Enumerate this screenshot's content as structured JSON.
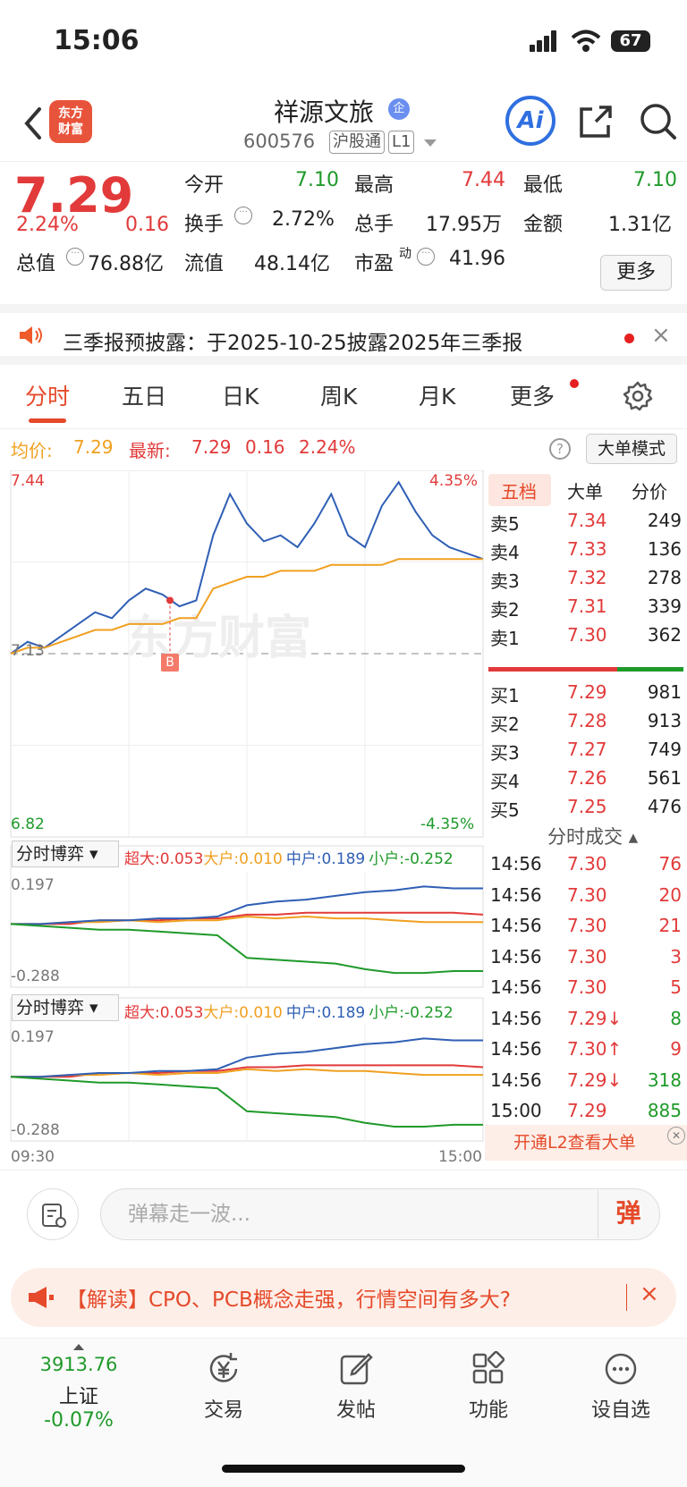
{
  "status": {
    "time": "15:06",
    "battery": "67"
  },
  "header": {
    "name": "祥源文旅",
    "badge": "企",
    "code": "600576",
    "tag1": "沪股通",
    "tag2": "L1",
    "ai": "Ai",
    "logo_line1": "东方",
    "logo_line2": "财富"
  },
  "quote": {
    "price": "7.29",
    "pct": "2.24%",
    "chg": "0.16",
    "open_label": "今开",
    "open": "7.10",
    "high_label": "最高",
    "high": "7.44",
    "low_label": "最低",
    "low": "7.10",
    "turnover_label": "换手",
    "turnover": "2.72%",
    "volume_label": "总手",
    "volume": "17.95万",
    "amount_label": "金额",
    "amount": "1.31亿",
    "mcap_label": "总值",
    "mcap": "76.88亿",
    "float_label": "流值",
    "float": "48.14亿",
    "pe_label": "市盈",
    "pe_sup": "动",
    "pe": "41.96",
    "more": "更多"
  },
  "notice": {
    "text": "三季报预披露：于2025-10-25披露2025年三季报",
    "close": "×"
  },
  "tabs": [
    "分时",
    "五日",
    "日K",
    "周K",
    "月K",
    "更多"
  ],
  "inforow": {
    "avg_label": "均价:",
    "avg": "7.29",
    "last_label": "最新:",
    "last": "7.29",
    "chg": "0.16",
    "pct": "2.24%",
    "help": "?",
    "mode": "大单模式"
  },
  "chart": {
    "y_high": "7.44",
    "y_low": "6.82",
    "pct_high": "4.35%",
    "pct_low": "-4.35%",
    "prev_close_label": "7.13",
    "watermark": "东方财富",
    "marker": "B",
    "x_start": "09:30",
    "x_end": "15:00"
  },
  "chart_data": {
    "type": "line",
    "x_range": [
      "09:30",
      "15:00"
    ],
    "ylim": [
      6.82,
      7.44
    ],
    "prev_close": 7.13,
    "series": [
      {
        "name": "最新",
        "color": "#2f5fb5",
        "values": [
          7.13,
          7.15,
          7.14,
          7.16,
          7.18,
          7.2,
          7.19,
          7.22,
          7.24,
          7.23,
          7.21,
          7.22,
          7.33,
          7.4,
          7.35,
          7.32,
          7.33,
          7.31,
          7.35,
          7.4,
          7.33,
          7.31,
          7.38,
          7.42,
          7.37,
          7.33,
          7.31,
          7.3,
          7.29
        ]
      },
      {
        "name": "均价",
        "color": "#f0a020",
        "values": [
          7.13,
          7.14,
          7.14,
          7.15,
          7.16,
          7.17,
          7.17,
          7.18,
          7.18,
          7.18,
          7.19,
          7.19,
          7.24,
          7.25,
          7.26,
          7.26,
          7.27,
          7.27,
          7.27,
          7.28,
          7.28,
          7.28,
          7.28,
          7.29,
          7.29,
          7.29,
          7.29,
          7.29,
          7.29
        ]
      }
    ]
  },
  "indicators": [
    {
      "select": "分时博弈",
      "items": [
        {
          "label": "超大:0.053",
          "color": "#e23a3a"
        },
        {
          "label": "大户:0.010",
          "color": "#f0a020"
        },
        {
          "label": "中户:0.189",
          "color": "#2f5fb5"
        },
        {
          "label": "小户:-0.252",
          "color": "#1f9a2a"
        }
      ],
      "top": "0.197",
      "bottom": "-0.288"
    },
    {
      "select": "分时博弈",
      "items": [
        {
          "label": "超大:0.053",
          "color": "#e23a3a"
        },
        {
          "label": "大户:0.010",
          "color": "#f0a020"
        },
        {
          "label": "中户:0.189",
          "color": "#2f5fb5"
        },
        {
          "label": "小户:-0.252",
          "color": "#1f9a2a"
        }
      ],
      "top": "0.197",
      "bottom": "-0.288"
    }
  ],
  "orderbook": {
    "tabs": [
      "五档",
      "大单",
      "分价"
    ],
    "asks": [
      {
        "label": "卖5",
        "price": "7.34",
        "vol": "249"
      },
      {
        "label": "卖4",
        "price": "7.33",
        "vol": "136"
      },
      {
        "label": "卖3",
        "price": "7.32",
        "vol": "278"
      },
      {
        "label": "卖2",
        "price": "7.31",
        "vol": "339"
      },
      {
        "label": "卖1",
        "price": "7.30",
        "vol": "362"
      }
    ],
    "bids": [
      {
        "label": "买1",
        "price": "7.29",
        "vol": "981"
      },
      {
        "label": "买2",
        "price": "7.28",
        "vol": "913"
      },
      {
        "label": "买3",
        "price": "7.27",
        "vol": "749"
      },
      {
        "label": "买4",
        "price": "7.26",
        "vol": "561"
      },
      {
        "label": "买5",
        "price": "7.25",
        "vol": "476"
      }
    ],
    "trades_title": "分时成交",
    "trades": [
      {
        "time": "14:56",
        "price": "7.30",
        "vol": "76",
        "color": "red"
      },
      {
        "time": "14:56",
        "price": "7.30",
        "vol": "20",
        "color": "red"
      },
      {
        "time": "14:56",
        "price": "7.30",
        "vol": "21",
        "color": "red"
      },
      {
        "time": "14:56",
        "price": "7.30",
        "vol": "3",
        "color": "red"
      },
      {
        "time": "14:56",
        "price": "7.30",
        "vol": "5",
        "color": "red"
      },
      {
        "time": "14:56",
        "price": "7.29↓",
        "vol": "8",
        "color": "green"
      },
      {
        "time": "14:56",
        "price": "7.30↑",
        "vol": "9",
        "color": "red"
      },
      {
        "time": "14:56",
        "price": "7.29↓",
        "vol": "318",
        "color": "green"
      },
      {
        "time": "15:00",
        "price": "7.29",
        "vol": "885",
        "color": "green"
      }
    ],
    "l2": "开通L2查看大单"
  },
  "comment": {
    "placeholder": "弹幕走一波...",
    "danmu": "弹"
  },
  "promo": {
    "text": "【解读】CPO、PCB概念走强，行情空间有多大?",
    "close": "×"
  },
  "nav": {
    "index_value": "3913.76",
    "index_name": "上证",
    "index_pct": "-0.07%",
    "trade": "交易",
    "post": "发帖",
    "func": "功能",
    "watch": "设自选"
  }
}
